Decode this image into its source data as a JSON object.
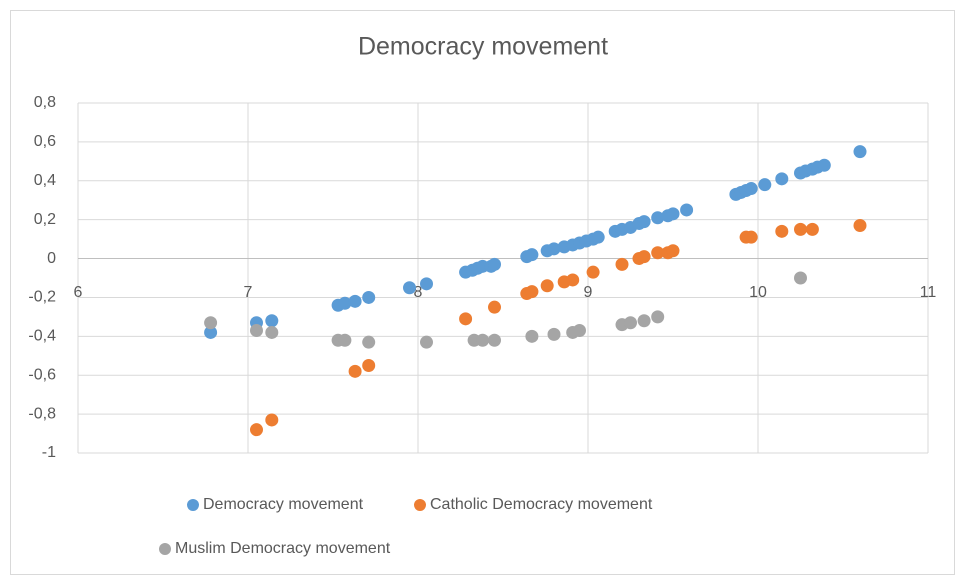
{
  "chart_data": {
    "type": "scatter",
    "title": "Democracy movement",
    "xlim": [
      6,
      11
    ],
    "xticks": [
      6,
      7,
      8,
      9,
      10,
      11
    ],
    "ylim": [
      -1,
      0.8
    ],
    "yticks": [
      {
        "value": 0.8,
        "label": "0,8"
      },
      {
        "value": 0.6,
        "label": "0,6"
      },
      {
        "value": 0.4,
        "label": "0,4"
      },
      {
        "value": 0.2,
        "label": "0,2"
      },
      0,
      {
        "value": -0.2,
        "label": "-0,2"
      },
      {
        "value": -0.4,
        "label": "-0,4"
      },
      {
        "value": -0.6,
        "label": "-0,6"
      },
      {
        "value": -0.8,
        "label": "-0,8"
      },
      -1
    ],
    "grid": true,
    "legend": "bottom",
    "series": [
      {
        "name": "Democracy movement",
        "color": "#5b9bd5",
        "x": [
          6.78,
          7.05,
          7.14,
          7.53,
          7.57,
          7.63,
          7.71,
          7.95,
          8.05,
          8.28,
          8.32,
          8.35,
          8.38,
          8.43,
          8.45,
          8.64,
          8.67,
          8.76,
          8.8,
          8.86,
          8.91,
          8.95,
          8.99,
          9.03,
          9.06,
          9.16,
          9.2,
          9.25,
          9.3,
          9.33,
          9.41,
          9.47,
          9.5,
          9.58,
          9.87,
          9.9,
          9.93,
          9.96,
          10.04,
          10.14,
          10.25,
          10.28,
          10.32,
          10.35,
          10.39,
          10.6
        ],
        "values": [
          -0.38,
          -0.33,
          -0.32,
          -0.24,
          -0.23,
          -0.22,
          -0.2,
          -0.15,
          -0.13,
          -0.07,
          -0.06,
          -0.05,
          -0.04,
          -0.04,
          -0.03,
          0.01,
          0.02,
          0.04,
          0.05,
          0.06,
          0.07,
          0.08,
          0.09,
          0.1,
          0.11,
          0.14,
          0.15,
          0.16,
          0.18,
          0.19,
          0.21,
          0.22,
          0.23,
          0.25,
          0.33,
          0.34,
          0.35,
          0.36,
          0.38,
          0.41,
          0.44,
          0.45,
          0.46,
          0.47,
          0.48,
          0.55
        ]
      },
      {
        "name": "Catholic Democracy movement",
        "color": "#ed7d31",
        "x": [
          7.05,
          7.14,
          7.63,
          7.71,
          8.28,
          8.45,
          8.64,
          8.67,
          8.76,
          8.86,
          8.91,
          9.03,
          9.2,
          9.3,
          9.33,
          9.41,
          9.47,
          9.5,
          9.93,
          9.96,
          10.14,
          10.25,
          10.32,
          10.6
        ],
        "values": [
          -0.88,
          -0.83,
          -0.58,
          -0.55,
          -0.31,
          -0.25,
          -0.18,
          -0.17,
          -0.14,
          -0.12,
          -0.11,
          -0.07,
          -0.03,
          0.0,
          0.01,
          0.03,
          0.03,
          0.04,
          0.11,
          0.11,
          0.14,
          0.15,
          0.15,
          0.17
        ]
      },
      {
        "name": "Muslim Democracy movement",
        "color": "#a5a5a5",
        "x": [
          6.78,
          7.05,
          7.14,
          7.53,
          7.57,
          7.71,
          8.05,
          8.33,
          8.38,
          8.45,
          8.67,
          8.8,
          8.91,
          8.95,
          9.2,
          9.25,
          9.33,
          9.41,
          10.25
        ],
        "values": [
          -0.33,
          -0.37,
          -0.38,
          -0.42,
          -0.42,
          -0.43,
          -0.43,
          -0.42,
          -0.42,
          -0.42,
          -0.4,
          -0.39,
          -0.38,
          -0.37,
          -0.34,
          -0.33,
          -0.32,
          -0.3,
          -0.1
        ]
      }
    ]
  }
}
